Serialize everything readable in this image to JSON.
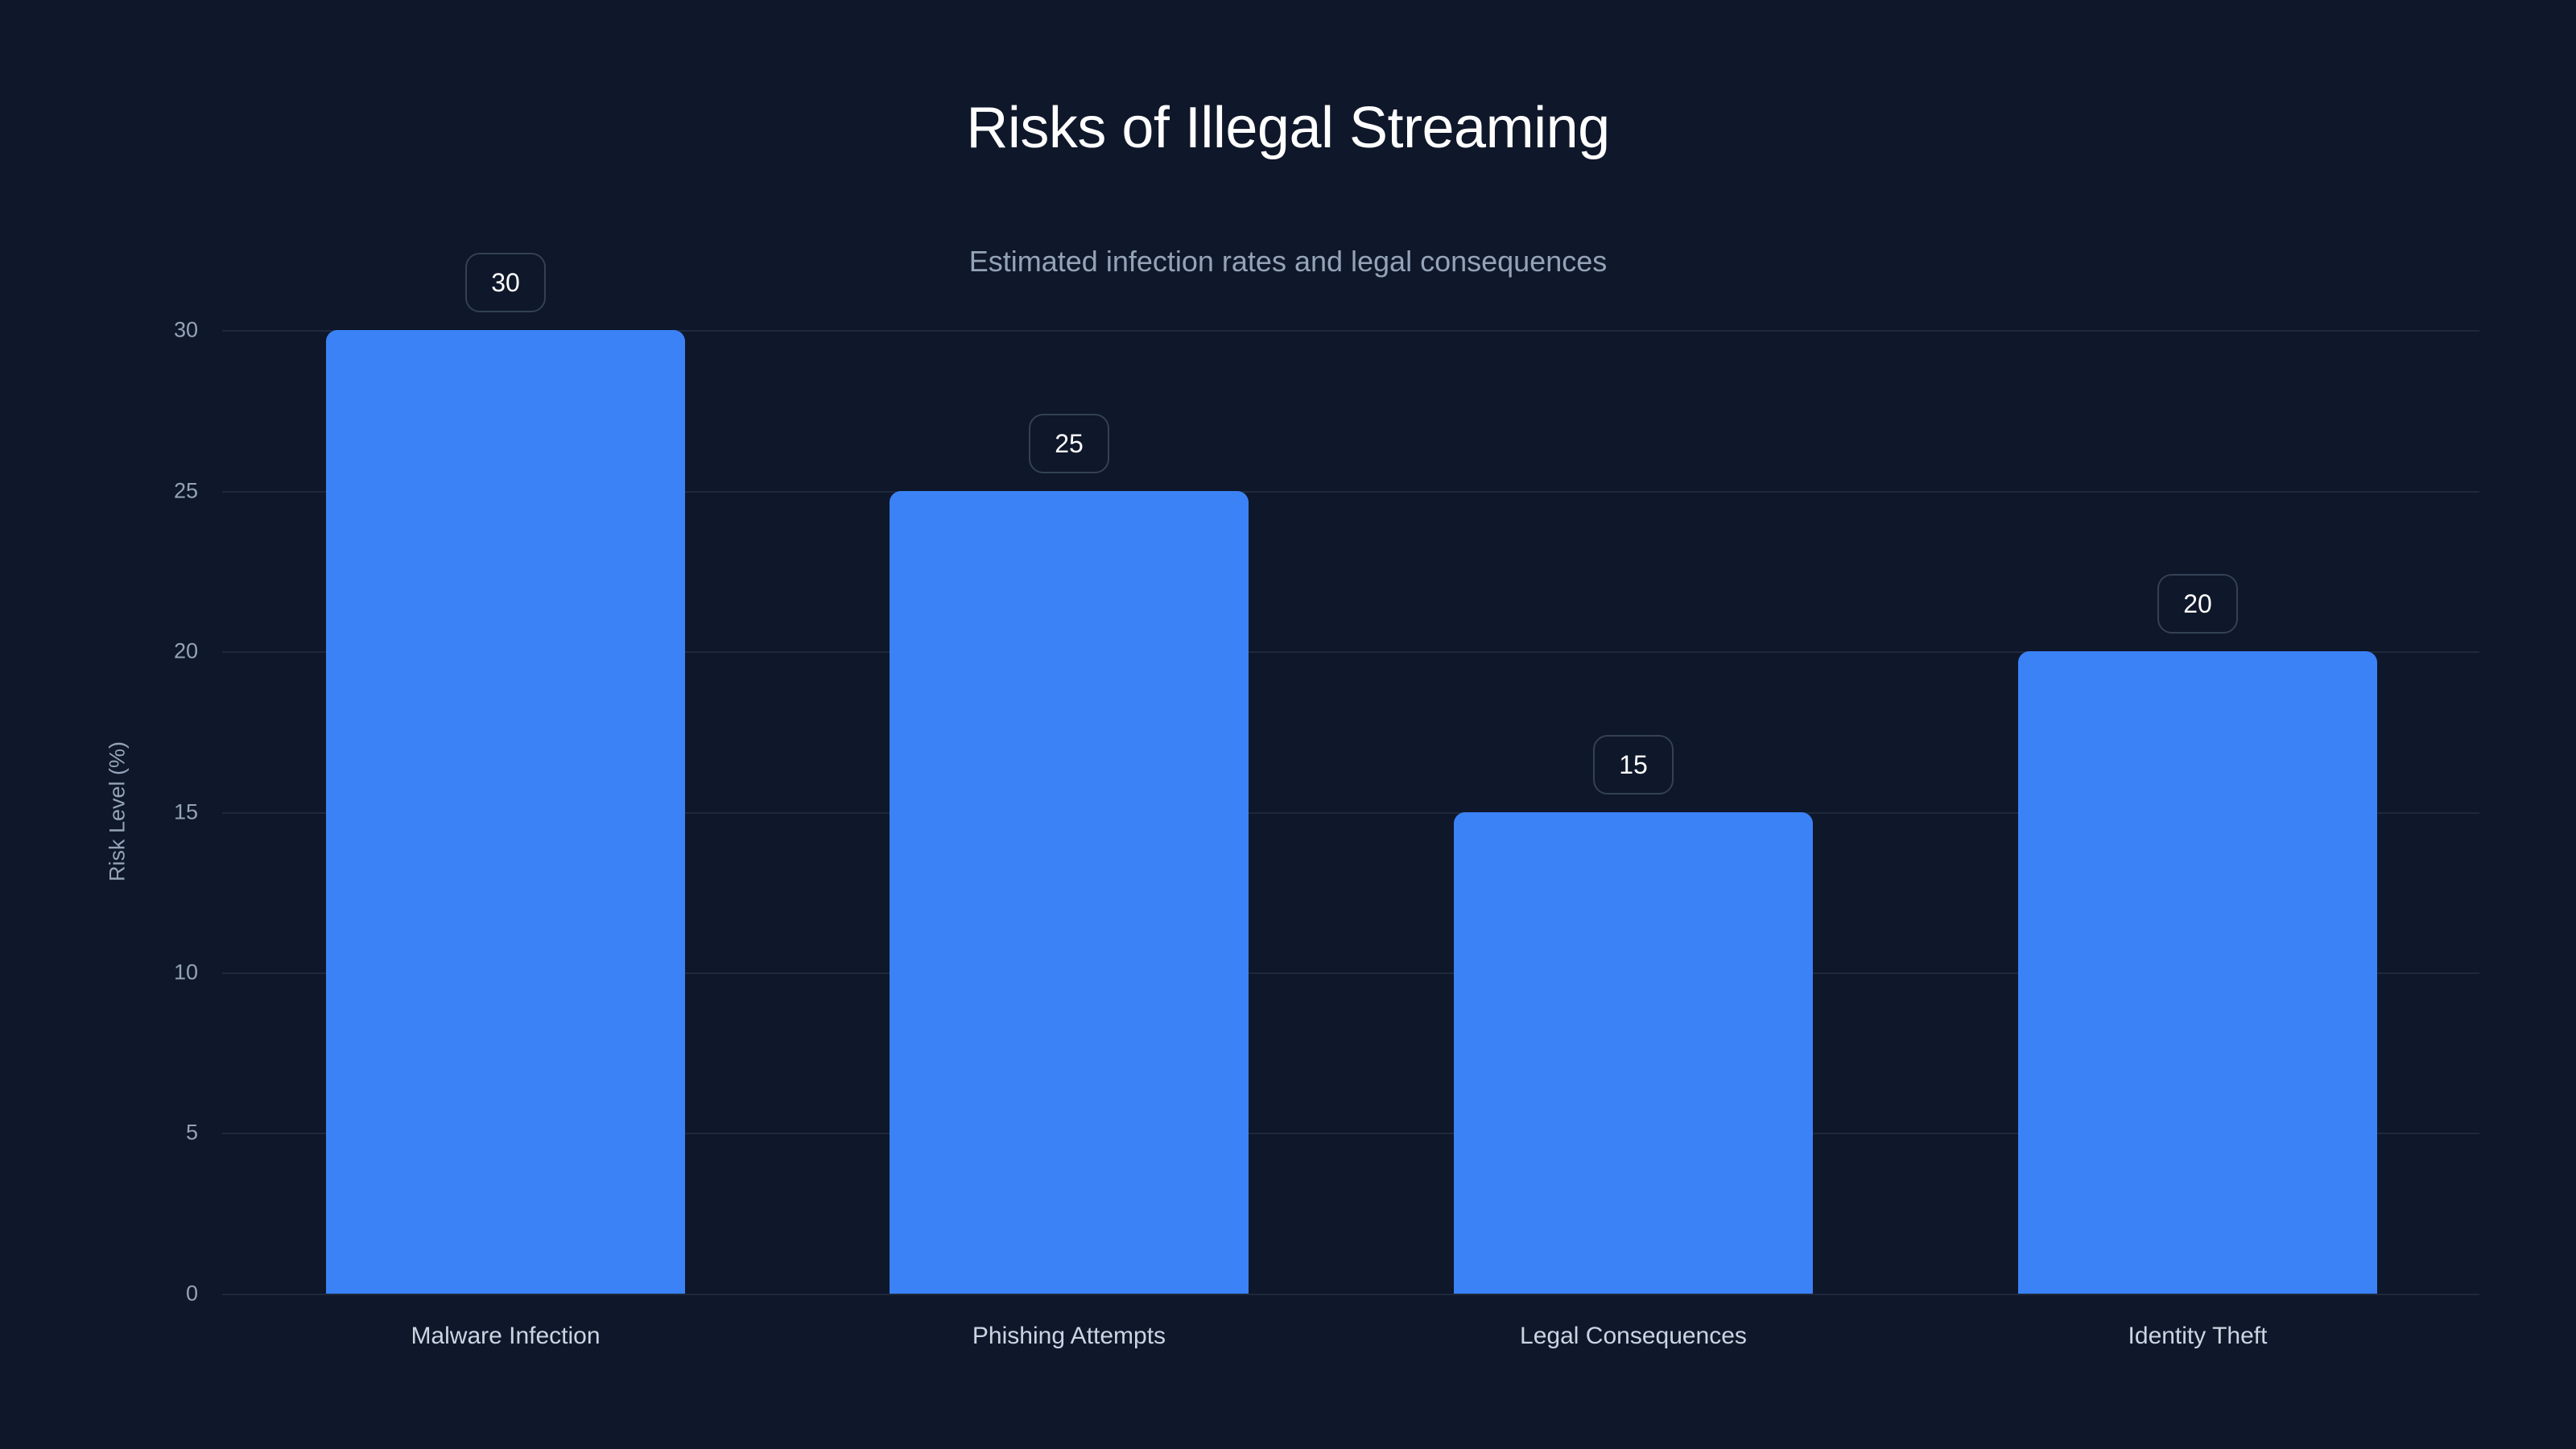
{
  "chart_data": {
    "type": "bar",
    "title": "Risks of Illegal Streaming",
    "subtitle": "Estimated infection rates and legal consequences",
    "xlabel": "",
    "ylabel": "Risk Level (%)",
    "categories": [
      "Malware Infection",
      "Phishing Attempts",
      "Legal Consequences",
      "Identity Theft"
    ],
    "values": [
      30,
      25,
      15,
      20
    ],
    "data_labels": [
      "30",
      "25",
      "15",
      "20"
    ],
    "ylim": [
      0,
      30
    ],
    "yticks": [
      "0",
      "5",
      "10",
      "15",
      "20",
      "25",
      "30"
    ],
    "grid": true,
    "legend": null,
    "colors": {
      "bar": "#3b82f6",
      "background": "#0f172a",
      "grid": "#1e293b"
    }
  }
}
